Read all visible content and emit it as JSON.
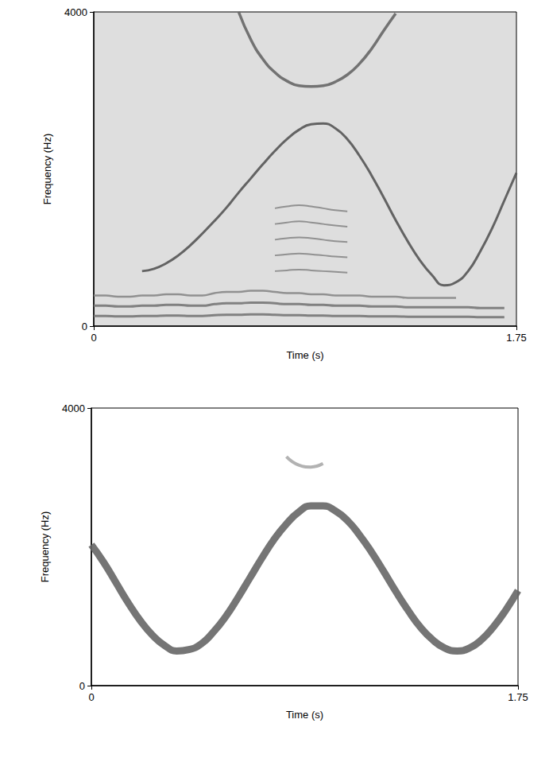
{
  "chart_data": [
    {
      "type": "line",
      "x_label": "Time (s)",
      "y_label": "Frequency (Hz)",
      "x": [
        0,
        0.05,
        0.1,
        0.15,
        0.2,
        0.25,
        0.3,
        0.35,
        0.4,
        0.45,
        0.5,
        0.55,
        0.6,
        0.65,
        0.7,
        0.75,
        0.8,
        0.85,
        0.9,
        0.95,
        1.0,
        1.05,
        1.1,
        1.15,
        1.2,
        1.25,
        1.3,
        1.35,
        1.4,
        1.45,
        1.5,
        1.55,
        1.6,
        1.65,
        1.7,
        1.75
      ],
      "xlim": [
        0,
        1.75
      ],
      "xticks": [
        0,
        1.75
      ],
      "ylim": [
        0,
        4000
      ],
      "yticks": [
        0,
        4000
      ],
      "grid": false,
      "series": [
        {
          "color": "#555555",
          "values": [
            null,
            null,
            null,
            null,
            700,
            730,
            800,
            900,
            1030,
            1180,
            1340,
            1510,
            1700,
            1880,
            2060,
            2230,
            2380,
            2500,
            2570,
            2580,
            2520,
            2380,
            2170,
            1920,
            1640,
            1350,
            1080,
            840,
            650,
            520,
            560,
            700,
            950,
            1250,
            1600,
            1950
          ]
        },
        {
          "color": "#666666",
          "values": [
            null,
            null,
            null,
            null,
            null,
            null,
            null,
            null,
            null,
            null,
            null,
            null,
            4000,
            3650,
            3400,
            3230,
            3120,
            3060,
            3050,
            3060,
            3110,
            3200,
            3340,
            3530,
            3760,
            3980,
            null,
            null,
            null,
            null,
            null,
            null,
            null,
            null,
            null,
            null
          ]
        },
        {
          "color": "#777777",
          "values": [
            130,
            130,
            125,
            125,
            130,
            130,
            135,
            135,
            130,
            130,
            140,
            145,
            145,
            150,
            150,
            145,
            140,
            140,
            135,
            135,
            130,
            130,
            130,
            125,
            125,
            125,
            120,
            120,
            120,
            120,
            120,
            120,
            115,
            115,
            115,
            null
          ]
        },
        {
          "color": "#777777",
          "values": [
            260,
            260,
            250,
            250,
            260,
            260,
            270,
            270,
            260,
            260,
            280,
            290,
            290,
            300,
            300,
            290,
            280,
            280,
            270,
            270,
            260,
            260,
            260,
            250,
            250,
            250,
            240,
            240,
            240,
            240,
            240,
            240,
            230,
            230,
            230,
            null
          ]
        },
        {
          "color": "#888888",
          "values": [
            390,
            390,
            375,
            375,
            390,
            390,
            405,
            405,
            390,
            390,
            420,
            435,
            435,
            450,
            450,
            435,
            420,
            420,
            405,
            405,
            390,
            390,
            390,
            375,
            375,
            375,
            360,
            360,
            360,
            360,
            360,
            null,
            null,
            null,
            null,
            null
          ]
        },
        {
          "color": "#888888",
          "values": [
            null,
            null,
            null,
            null,
            null,
            null,
            null,
            null,
            null,
            null,
            null,
            null,
            null,
            null,
            null,
            700,
            710,
            720,
            710,
            700,
            690,
            680,
            null,
            null,
            null,
            null,
            null,
            null,
            null,
            null,
            null,
            null,
            null,
            null,
            null,
            null
          ]
        },
        {
          "color": "#888888",
          "values": [
            null,
            null,
            null,
            null,
            null,
            null,
            null,
            null,
            null,
            null,
            null,
            null,
            null,
            null,
            null,
            900,
            915,
            925,
            915,
            900,
            885,
            875,
            null,
            null,
            null,
            null,
            null,
            null,
            null,
            null,
            null,
            null,
            null,
            null,
            null,
            null
          ]
        },
        {
          "color": "#888888",
          "values": [
            null,
            null,
            null,
            null,
            null,
            null,
            null,
            null,
            null,
            null,
            null,
            null,
            null,
            null,
            null,
            1100,
            1120,
            1130,
            1120,
            1100,
            1080,
            1070,
            null,
            null,
            null,
            null,
            null,
            null,
            null,
            null,
            null,
            null,
            null,
            null,
            null,
            null
          ]
        },
        {
          "color": "#888888",
          "values": [
            null,
            null,
            null,
            null,
            null,
            null,
            null,
            null,
            null,
            null,
            null,
            null,
            null,
            null,
            null,
            1300,
            1320,
            1335,
            1320,
            1300,
            1280,
            1265,
            null,
            null,
            null,
            null,
            null,
            null,
            null,
            null,
            null,
            null,
            null,
            null,
            null,
            null
          ]
        },
        {
          "color": "#888888",
          "values": [
            null,
            null,
            null,
            null,
            null,
            null,
            null,
            null,
            null,
            null,
            null,
            null,
            null,
            null,
            null,
            1500,
            1525,
            1540,
            1525,
            1500,
            1475,
            1460,
            null,
            null,
            null,
            null,
            null,
            null,
            null,
            null,
            null,
            null,
            null,
            null,
            null,
            null
          ]
        }
      ]
    },
    {
      "type": "line",
      "x_label": "Time (s)",
      "y_label": "Frequency (Hz)",
      "x": [
        0,
        0.05,
        0.1,
        0.15,
        0.2,
        0.25,
        0.3,
        0.35,
        0.4,
        0.45,
        0.5,
        0.55,
        0.6,
        0.65,
        0.7,
        0.75,
        0.8,
        0.85,
        0.9,
        0.95,
        1.0,
        1.05,
        1.1,
        1.15,
        1.2,
        1.25,
        1.3,
        1.35,
        1.4,
        1.45,
        1.5,
        1.55,
        1.6,
        1.65,
        1.7,
        1.75
      ],
      "xlim": [
        0,
        1.75
      ],
      "xticks": [
        0,
        1.75
      ],
      "ylim": [
        0,
        4000
      ],
      "yticks": [
        0,
        4000
      ],
      "grid": false,
      "series": [
        {
          "color": "#666666",
          "values": [
            2030,
            1780,
            1490,
            1200,
            940,
            730,
            580,
            500,
            520,
            600,
            770,
            990,
            1260,
            1550,
            1840,
            2110,
            2330,
            2500,
            2590,
            2590,
            2520,
            2380,
            2170,
            1920,
            1640,
            1350,
            1080,
            840,
            660,
            540,
            500,
            540,
            660,
            850,
            1090,
            1370
          ]
        },
        {
          "color": "#aaaaaa",
          "values": [
            null,
            null,
            null,
            null,
            null,
            null,
            null,
            null,
            null,
            null,
            null,
            null,
            null,
            null,
            null,
            null,
            3300,
            3180,
            3150,
            3200,
            null,
            null,
            null,
            null,
            null,
            null,
            null,
            null,
            null,
            null,
            null,
            null,
            null,
            null,
            null,
            null
          ]
        }
      ]
    }
  ]
}
